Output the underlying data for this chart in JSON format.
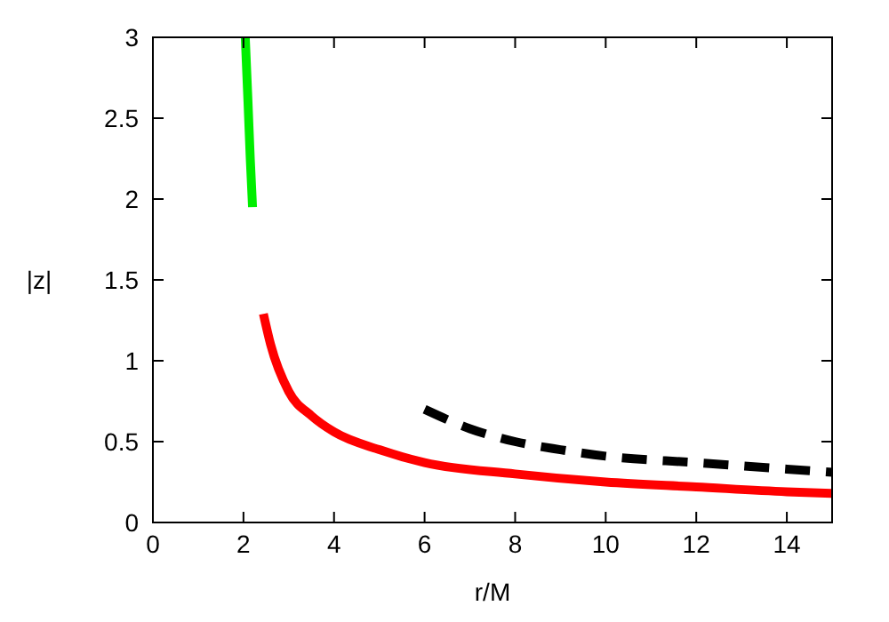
{
  "chart_data": {
    "type": "line",
    "xlabel": "r/M",
    "ylabel": "|z|",
    "xlim": [
      0,
      15
    ],
    "xticks": [
      0,
      2,
      4,
      6,
      8,
      10,
      12,
      14
    ],
    "ylim": [
      0,
      3
    ],
    "yticks": [
      0,
      0.5,
      1,
      1.5,
      2,
      2.5,
      3
    ],
    "grid": false,
    "series": [
      {
        "color": "#00ee00",
        "line_style": "solid",
        "x": [
          2.04,
          2.1,
          2.15,
          2.2
        ],
        "values": [
          3,
          2.6,
          2.25,
          1.95
        ]
      },
      {
        "color": "#ff0000",
        "line_style": "solid",
        "x": [
          2.44,
          2.6,
          3,
          3.5,
          4,
          5,
          6,
          8,
          10,
          12,
          14,
          15
        ],
        "values": [
          1.29,
          1.1,
          0.81,
          0.66,
          0.56,
          0.45,
          0.37,
          0.3,
          0.25,
          0.22,
          0.19,
          0.18
        ]
      },
      {
        "color": "#000000",
        "line_style": "dashed",
        "x": [
          6,
          7,
          8,
          9,
          10,
          12,
          14,
          15
        ],
        "values": [
          0.7,
          0.58,
          0.5,
          0.45,
          0.41,
          0.37,
          0.33,
          0.31
        ]
      }
    ]
  }
}
